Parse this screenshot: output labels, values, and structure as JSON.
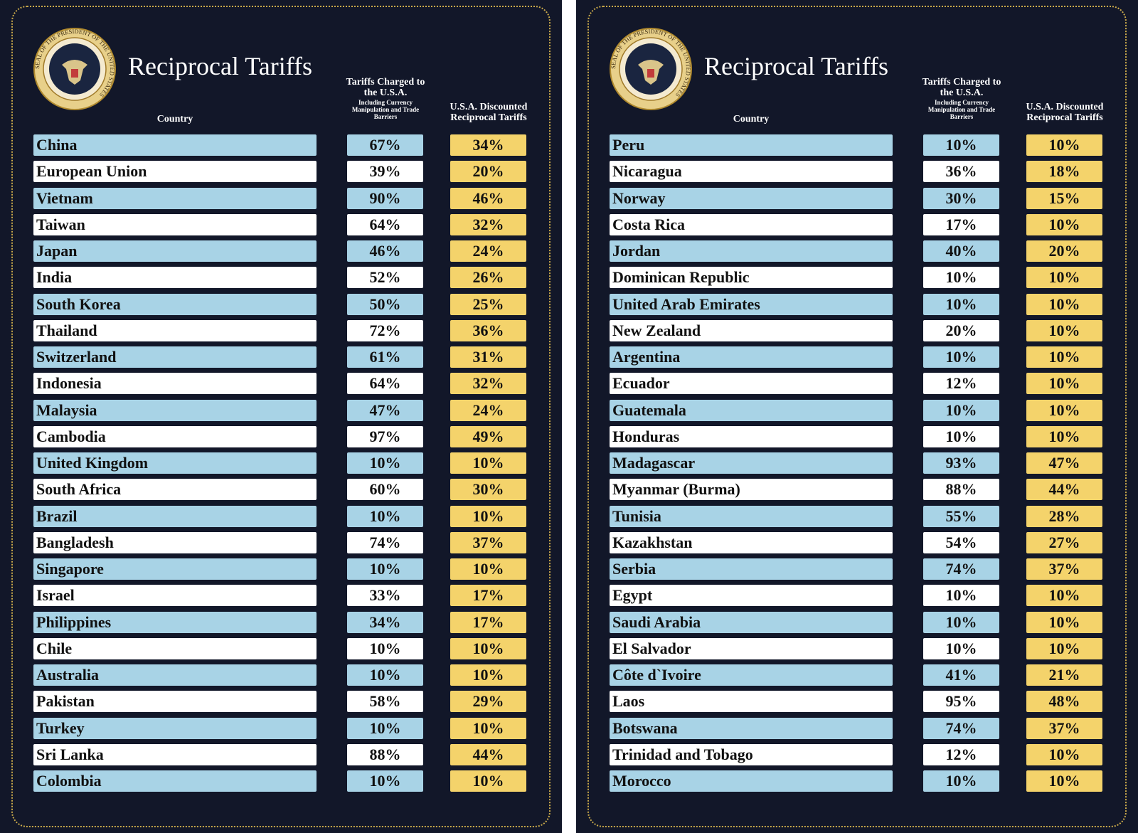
{
  "panels": [
    {
      "title": "Reciprocal Tariffs",
      "seal_text": "SEAL OF THE PRESIDENT OF THE UNITED STATES",
      "headers": {
        "country": "Country",
        "charged": "Tariffs Charged to the U.S.A.",
        "charged_note": "Including Currency Manipulation and Trade Barriers",
        "reciprocal": "U.S.A. Discounted Reciprocal Tariffs"
      },
      "rows": [
        [
          "China",
          "67%",
          "34%"
        ],
        [
          "European Union",
          "39%",
          "20%"
        ],
        [
          "Vietnam",
          "90%",
          "46%"
        ],
        [
          "Taiwan",
          "64%",
          "32%"
        ],
        [
          "Japan",
          "46%",
          "24%"
        ],
        [
          "India",
          "52%",
          "26%"
        ],
        [
          "South Korea",
          "50%",
          "25%"
        ],
        [
          "Thailand",
          "72%",
          "36%"
        ],
        [
          "Switzerland",
          "61%",
          "31%"
        ],
        [
          "Indonesia",
          "64%",
          "32%"
        ],
        [
          "Malaysia",
          "47%",
          "24%"
        ],
        [
          "Cambodia",
          "97%",
          "49%"
        ],
        [
          "United Kingdom",
          "10%",
          "10%"
        ],
        [
          "South Africa",
          "60%",
          "30%"
        ],
        [
          "Brazil",
          "10%",
          "10%"
        ],
        [
          "Bangladesh",
          "74%",
          "37%"
        ],
        [
          "Singapore",
          "10%",
          "10%"
        ],
        [
          "Israel",
          "33%",
          "17%"
        ],
        [
          "Philippines",
          "34%",
          "17%"
        ],
        [
          "Chile",
          "10%",
          "10%"
        ],
        [
          "Australia",
          "10%",
          "10%"
        ],
        [
          "Pakistan",
          "58%",
          "29%"
        ],
        [
          "Turkey",
          "10%",
          "10%"
        ],
        [
          "Sri Lanka",
          "88%",
          "44%"
        ],
        [
          "Colombia",
          "10%",
          "10%"
        ]
      ]
    },
    {
      "title": "Reciprocal Tariffs",
      "seal_text": "SEAL OF THE PRESIDENT OF THE UNITED STATES",
      "headers": {
        "country": "Country",
        "charged": "Tariffs Charged to the U.S.A.",
        "charged_note": "Including Currency Manipulation and Trade Barriers",
        "reciprocal": "U.S.A. Discounted Reciprocal Tariffs"
      },
      "rows": [
        [
          "Peru",
          "10%",
          "10%"
        ],
        [
          "Nicaragua",
          "36%",
          "18%"
        ],
        [
          "Norway",
          "30%",
          "15%"
        ],
        [
          "Costa Rica",
          "17%",
          "10%"
        ],
        [
          "Jordan",
          "40%",
          "20%"
        ],
        [
          "Dominican Republic",
          "10%",
          "10%"
        ],
        [
          "United Arab Emirates",
          "10%",
          "10%"
        ],
        [
          "New Zealand",
          "20%",
          "10%"
        ],
        [
          "Argentina",
          "10%",
          "10%"
        ],
        [
          "Ecuador",
          "12%",
          "10%"
        ],
        [
          "Guatemala",
          "10%",
          "10%"
        ],
        [
          "Honduras",
          "10%",
          "10%"
        ],
        [
          "Madagascar",
          "93%",
          "47%"
        ],
        [
          "Myanmar (Burma)",
          "88%",
          "44%"
        ],
        [
          "Tunisia",
          "55%",
          "28%"
        ],
        [
          "Kazakhstan",
          "54%",
          "27%"
        ],
        [
          "Serbia",
          "74%",
          "37%"
        ],
        [
          "Egypt",
          "10%",
          "10%"
        ],
        [
          "Saudi Arabia",
          "10%",
          "10%"
        ],
        [
          "El Salvador",
          "10%",
          "10%"
        ],
        [
          "Côte d`Ivoire",
          "41%",
          "21%"
        ],
        [
          "Laos",
          "95%",
          "48%"
        ],
        [
          "Botswana",
          "74%",
          "37%"
        ],
        [
          "Trinidad and Tobago",
          "12%",
          "10%"
        ],
        [
          "Morocco",
          "10%",
          "10%"
        ]
      ]
    }
  ]
}
